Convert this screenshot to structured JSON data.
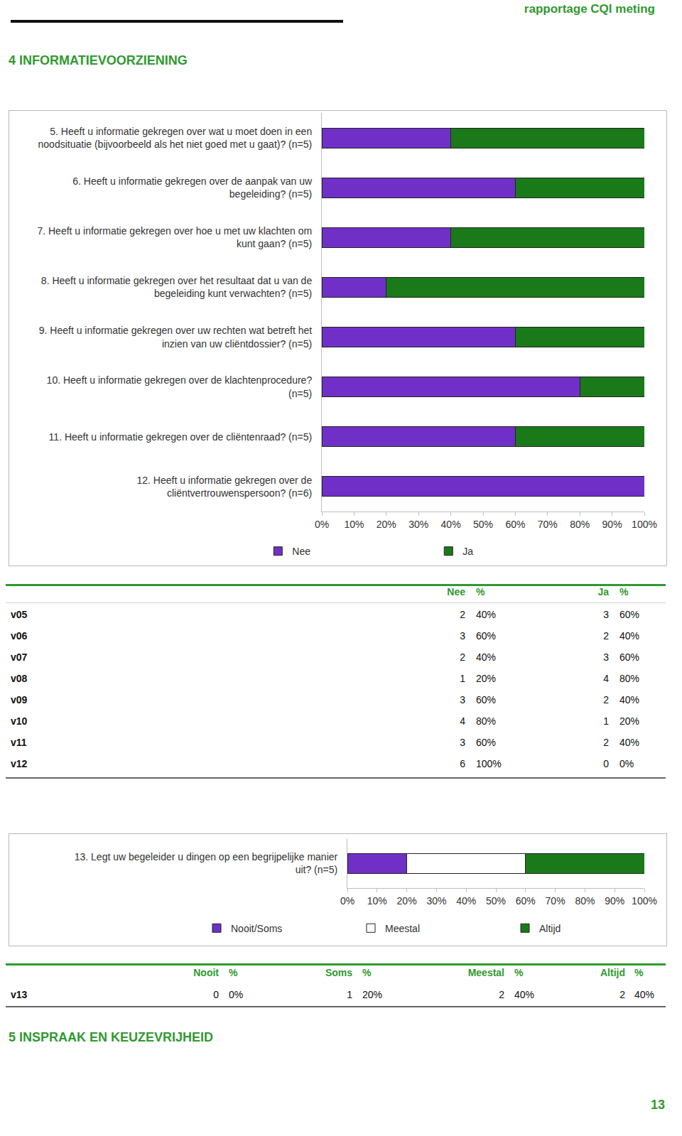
{
  "header": {
    "title": "rapportage CQI meting"
  },
  "section_title": "4 INFORMATIEVOORZIENING",
  "chart_data": [
    {
      "type": "bar",
      "orientation": "horizontal",
      "stacked": true,
      "legend": "bottom",
      "categories": [
        "5. Heeft u informatie gekregen over wat u moet doen in een noodsituatie (bijvoorbeeld als het niet goed met u gaat)? (n=5)",
        "6. Heeft u informatie gekregen over de aanpak van uw begeleiding? (n=5)",
        "7. Heeft u informatie gekregen over hoe u met uw klachten om kunt gaan? (n=5)",
        "8. Heeft u informatie gekregen over het resultaat dat u van de begeleiding kunt verwachten? (n=5)",
        "9. Heeft u informatie gekregen over uw rechten wat betreft het inzien van uw cliëntdossier? (n=5)",
        "10. Heeft u informatie gekregen over de klachtenprocedure? (n=5)",
        "11. Heeft u informatie gekregen over de cliëntenraad? (n=5)",
        "12. Heeft u informatie gekregen over de cliëntvertrouwenspersoon? (n=6)"
      ],
      "series": [
        {
          "name": "Nee",
          "color": "#7030c8",
          "values": [
            40,
            60,
            40,
            20,
            60,
            80,
            60,
            100
          ]
        },
        {
          "name": "Ja",
          "color": "#1a7a1a",
          "values": [
            60,
            40,
            60,
            80,
            40,
            20,
            40,
            0
          ]
        }
      ],
      "xlim": [
        0,
        100
      ],
      "xticks": [
        {
          "value": 0,
          "label": "0%"
        },
        {
          "value": 10,
          "label": "10%"
        },
        {
          "value": 20,
          "label": "20%"
        },
        {
          "value": 30,
          "label": "30%"
        },
        {
          "value": 40,
          "label": "40%"
        },
        {
          "value": 50,
          "label": "50%"
        },
        {
          "value": 60,
          "label": "60%"
        },
        {
          "value": 70,
          "label": "70%"
        },
        {
          "value": 80,
          "label": "80%"
        },
        {
          "value": 90,
          "label": "90%"
        },
        {
          "value": 100,
          "label": "100%"
        }
      ]
    },
    {
      "type": "bar",
      "orientation": "horizontal",
      "stacked": true,
      "legend": "bottom",
      "categories": [
        "13. Legt uw begeleider u dingen op een begrijpelijke manier uit? (n=5)"
      ],
      "series": [
        {
          "name": "Nooit/Soms",
          "color": "#7030c8",
          "values": [
            20
          ]
        },
        {
          "name": "Meestal",
          "color": "#ffffff",
          "values": [
            40
          ]
        },
        {
          "name": "Altijd",
          "color": "#1a7a1a",
          "values": [
            40
          ]
        }
      ],
      "xlim": [
        0,
        100
      ],
      "xticks": [
        {
          "value": 0,
          "label": "0%"
        },
        {
          "value": 10,
          "label": "10%"
        },
        {
          "value": 20,
          "label": "20%"
        },
        {
          "value": 30,
          "label": "30%"
        },
        {
          "value": 40,
          "label": "40%"
        },
        {
          "value": 50,
          "label": "50%"
        },
        {
          "value": 60,
          "label": "60%"
        },
        {
          "value": 70,
          "label": "70%"
        },
        {
          "value": 80,
          "label": "80%"
        },
        {
          "value": 90,
          "label": "90%"
        },
        {
          "value": 100,
          "label": "100%"
        }
      ]
    }
  ],
  "tables": [
    {
      "header": [
        "Nee",
        "%",
        "Ja",
        "%"
      ],
      "rows": [
        {
          "label": "v05",
          "cells": [
            "2",
            "40%",
            "3",
            "60%"
          ]
        },
        {
          "label": "v06",
          "cells": [
            "3",
            "60%",
            "2",
            "40%"
          ]
        },
        {
          "label": "v07",
          "cells": [
            "2",
            "40%",
            "3",
            "60%"
          ]
        },
        {
          "label": "v08",
          "cells": [
            "1",
            "20%",
            "4",
            "80%"
          ]
        },
        {
          "label": "v09",
          "cells": [
            "3",
            "60%",
            "2",
            "40%"
          ]
        },
        {
          "label": "v10",
          "cells": [
            "4",
            "80%",
            "1",
            "20%"
          ]
        },
        {
          "label": "v11",
          "cells": [
            "3",
            "60%",
            "2",
            "40%"
          ]
        },
        {
          "label": "v12",
          "cells": [
            "6",
            "100%",
            "0",
            "0%"
          ]
        }
      ]
    },
    {
      "header": [
        "Nooit",
        "%",
        "Soms",
        "%",
        "Meestal",
        "%",
        "Altijd",
        "%"
      ],
      "rows": [
        {
          "label": "v13",
          "cells": [
            "0",
            "0%",
            "1",
            "20%",
            "2",
            "40%",
            "2",
            "40%"
          ]
        }
      ]
    }
  ],
  "next_section_title": "5 INSPRAAK EN KEUZEVRIJHEID",
  "page_number": "13"
}
